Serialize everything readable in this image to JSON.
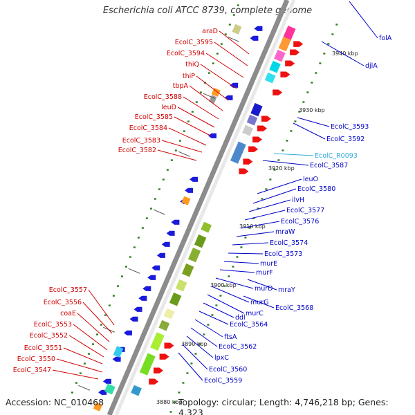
{
  "title": "Escherichia coli ATCC 8739, complete genome",
  "footer": {
    "accession": "Accession: NC_010468",
    "summary": "Topology: circular; Length: 4,746,218 bp; Genes: 4,323"
  },
  "colors": {
    "backbone": "#8c8c8c",
    "forward_label": "#d00000",
    "reverse_label": "#0000c8",
    "rna_label": "#33aadd",
    "ruler_dot": "#2e7d1e"
  },
  "kbp_ticks": [
    "3940 kbp",
    "3930 kbp",
    "3920 kbp",
    "3910 kbp",
    "3900 kbp",
    "3890 kbp",
    "3880 kbp"
  ],
  "left_labels": [
    "araD",
    "EcolC_3595",
    "EcolC_3594",
    "thiQ",
    "thiP",
    "tbpA",
    "EcolC_3588",
    "leuD",
    "EcolC_3585",
    "EcolC_3584",
    "EcolC_3583",
    "EcolC_3582",
    "EcolC_3557",
    "EcolC_3556",
    "coaE",
    "EcolC_3553",
    "EcolC_3552",
    "EcolC_3551",
    "EcolC_3550",
    "EcolC_3547"
  ],
  "right_labels": [
    "folA",
    "djlA",
    "EcolC_3593",
    "EcolC_3592",
    "EcolC_R0093",
    "EcolC_3587",
    "leuO",
    "EcolC_3580",
    "ilvH",
    "EcolC_3577",
    "EcolC_3576",
    "mraW",
    "EcolC_3574",
    "EcolC_3573",
    "murE",
    "murF",
    "mraY",
    "murD",
    "murG",
    "EcolC_3568",
    "murC",
    "ddl",
    "EcolC_3564",
    "ftsA",
    "EcolC_3562",
    "lpxC",
    "EcolC_3560",
    "EcolC_3559"
  ]
}
